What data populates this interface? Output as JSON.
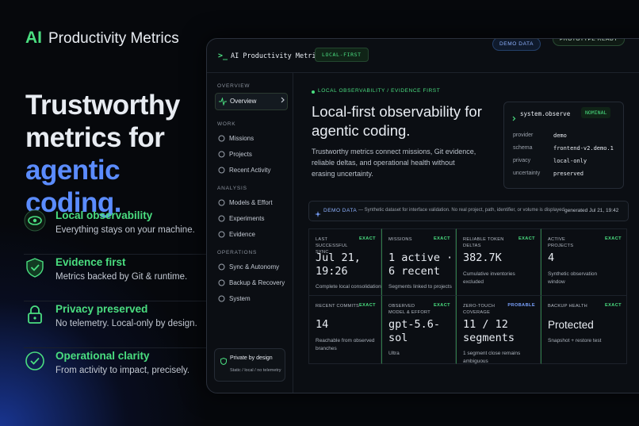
{
  "brand": {
    "mark": "AI",
    "name": "Productivity Metrics"
  },
  "hero": {
    "line1": "Trustworthy metrics for",
    "line2": "agentic coding."
  },
  "features": [
    {
      "title": "Local observability",
      "description": "Everything stays on your machine."
    },
    {
      "title": "Evidence first",
      "description": "Metrics backed by Git & runtime."
    },
    {
      "title": "Privacy preserved",
      "description": "No telemetry. Local-only by design."
    },
    {
      "title": "Operational clarity",
      "description": "From activity to impact, precisely."
    }
  ],
  "app": {
    "prompt": ">_",
    "title": "AI Productivity Metrics",
    "tag": "LOCAL-FIRST",
    "badges": [
      "DEMO DATA",
      "PROTOTYPE READY"
    ],
    "nav": [
      {
        "section": "OVERVIEW",
        "items": [
          "Overview"
        ]
      },
      {
        "section": "WORK",
        "items": [
          "Missions",
          "Projects",
          "Recent Activity"
        ]
      },
      {
        "section": "ANALYSIS",
        "items": [
          "Models & Effort",
          "Experiments",
          "Evidence"
        ]
      },
      {
        "section": "OPERATIONS",
        "items": [
          "Sync & Autonomy",
          "Backup & Recovery",
          "System"
        ]
      }
    ],
    "privacy": {
      "title": "Private by design",
      "subtitle": "Static / local / no telemetry"
    },
    "eyebrow": "LOCAL OBSERVABILITY / EVIDENCE FIRST",
    "heading": "Local-first observability for agentic coding.",
    "body": "Trustworthy metrics connect missions, Git evidence, reliable deltas, and operational health without erasing uncertainty.",
    "observe": {
      "command": "system.observe",
      "status": "NOMINAL",
      "rows": [
        [
          "provider",
          "demo"
        ],
        [
          "schema",
          "frontend-v2.demo.1"
        ],
        [
          "privacy",
          "local-only"
        ],
        [
          "uncertainty",
          "preserved"
        ]
      ]
    },
    "notice": {
      "label": "DEMO DATA",
      "text": "— Synthetic dataset for interface validation. No real project, path, identifier, or volume is displayed.",
      "generated": "generated Jul 21, 19:42"
    },
    "cards": [
      {
        "label": "LAST SUCCESSFUL SYNC",
        "badge": "EXACT",
        "value": "Jul 21, 19:26",
        "note": "Complete local consolidation"
      },
      {
        "label": "MISSIONS",
        "badge": "EXACT",
        "value": "1 active · 6 recent",
        "note": "Segments linked to projects"
      },
      {
        "label": "RELIABLE TOKEN DELTAS",
        "badge": "EXACT",
        "value": "382.7K",
        "note": "Cumulative inventories excluded"
      },
      {
        "label": "ACTIVE PROJECTS",
        "badge": "EXACT",
        "value": "4",
        "note": "Synthetic observation window"
      },
      {
        "label": "RECENT COMMITS",
        "badge": "EXACT",
        "value": "14",
        "note": "Reachable from observed branches"
      },
      {
        "label": "OBSERVED MODEL & EFFORT",
        "badge": "EXACT",
        "value": "gpt-5.6-sol",
        "note": "Ultra"
      },
      {
        "label": "ZERO-TOUCH COVERAGE",
        "badge": "PROBABLE",
        "value": "11 / 12 segments",
        "note": "1 segment close remains ambiguous"
      },
      {
        "label": "BACKUP HEALTH",
        "badge": "EXACT",
        "value": "Protected",
        "note": "Snapshot + restore test"
      }
    ]
  }
}
